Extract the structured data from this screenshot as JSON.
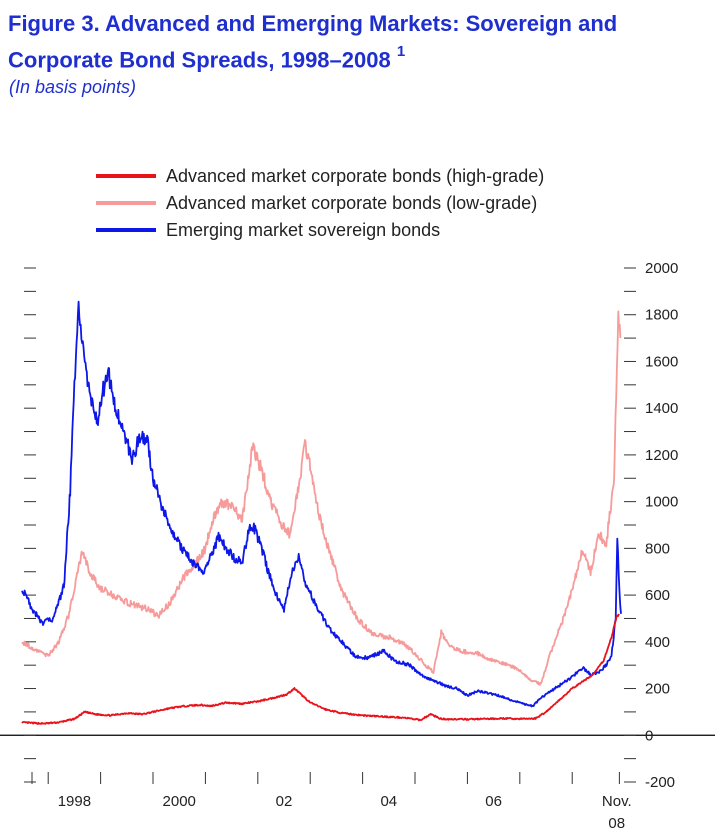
{
  "header": {
    "title": "Figure 3. Advanced and Emerging Markets: Sovereign and Corporate Bond Spreads, 1998–2008",
    "footnote_marker": "1",
    "subtitle": "(In basis points)"
  },
  "chart_data": {
    "type": "line",
    "title": "Figure 3. Advanced and Emerging Markets: Sovereign and Corporate Bond Spreads, 1998–2008",
    "subtitle": "(In basis points)",
    "xlabel": "",
    "ylabel": "",
    "xlim": [
      1997.5,
      2008.95
    ],
    "ylim": [
      -200,
      2000
    ],
    "yticks": [
      -200,
      0,
      200,
      400,
      600,
      800,
      1000,
      1200,
      1400,
      1600,
      1800,
      2000
    ],
    "xtick_labels": [
      {
        "x": 1998.5,
        "label": "1998"
      },
      {
        "x": 2000.5,
        "label": "2000"
      },
      {
        "x": 2002.5,
        "label": "02"
      },
      {
        "x": 2004.5,
        "label": "04"
      },
      {
        "x": 2006.5,
        "label": "06"
      },
      {
        "x": 2008.85,
        "label": "Nov.",
        "label2": "08"
      }
    ],
    "grid": false,
    "legend": "top",
    "series": [
      {
        "name": "Advanced market corporate bonds (high-grade)",
        "color": "#e8121b",
        "points": [
          [
            1997.5,
            55
          ],
          [
            1997.9,
            50
          ],
          [
            1998.2,
            55
          ],
          [
            1998.5,
            70
          ],
          [
            1998.7,
            100
          ],
          [
            1998.9,
            90
          ],
          [
            1999.2,
            85
          ],
          [
            1999.5,
            95
          ],
          [
            1999.8,
            90
          ],
          [
            2000.0,
            100
          ],
          [
            2000.3,
            115
          ],
          [
            2000.6,
            125
          ],
          [
            2000.9,
            130
          ],
          [
            2001.1,
            125
          ],
          [
            2001.4,
            140
          ],
          [
            2001.7,
            135
          ],
          [
            2002.0,
            145
          ],
          [
            2002.3,
            160
          ],
          [
            2002.55,
            175
          ],
          [
            2002.7,
            200
          ],
          [
            2002.85,
            170
          ],
          [
            2003.0,
            140
          ],
          [
            2003.3,
            110
          ],
          [
            2003.6,
            95
          ],
          [
            2004.0,
            85
          ],
          [
            2004.4,
            80
          ],
          [
            2004.8,
            75
          ],
          [
            2005.1,
            65
          ],
          [
            2005.3,
            90
          ],
          [
            2005.5,
            70
          ],
          [
            2005.9,
            68
          ],
          [
            2006.3,
            70
          ],
          [
            2006.7,
            72
          ],
          [
            2007.0,
            70
          ],
          [
            2007.3,
            72
          ],
          [
            2007.5,
            100
          ],
          [
            2007.8,
            160
          ],
          [
            2008.0,
            200
          ],
          [
            2008.2,
            230
          ],
          [
            2008.4,
            260
          ],
          [
            2008.6,
            320
          ],
          [
            2008.75,
            420
          ],
          [
            2008.85,
            510
          ],
          [
            2008.9,
            515
          ]
        ]
      },
      {
        "name": "Advanced market corporate bonds (low-grade)",
        "color": "#f79a9a",
        "points": [
          [
            1997.5,
            400
          ],
          [
            1997.8,
            360
          ],
          [
            1998.0,
            340
          ],
          [
            1998.2,
            400
          ],
          [
            1998.4,
            520
          ],
          [
            1998.55,
            680
          ],
          [
            1998.65,
            790
          ],
          [
            1998.8,
            690
          ],
          [
            1999.0,
            630
          ],
          [
            1999.3,
            590
          ],
          [
            1999.6,
            560
          ],
          [
            1999.9,
            540
          ],
          [
            2000.1,
            510
          ],
          [
            2000.3,
            560
          ],
          [
            2000.6,
            680
          ],
          [
            2000.9,
            760
          ],
          [
            2001.0,
            800
          ],
          [
            2001.1,
            900
          ],
          [
            2001.3,
            1000
          ],
          [
            2001.5,
            980
          ],
          [
            2001.7,
            920
          ],
          [
            2001.9,
            1230
          ],
          [
            2002.05,
            1150
          ],
          [
            2002.25,
            1000
          ],
          [
            2002.45,
            900
          ],
          [
            2002.6,
            860
          ],
          [
            2002.75,
            1020
          ],
          [
            2002.9,
            1240
          ],
          [
            2003.0,
            1150
          ],
          [
            2003.15,
            960
          ],
          [
            2003.35,
            800
          ],
          [
            2003.6,
            620
          ],
          [
            2003.9,
            500
          ],
          [
            2004.2,
            430
          ],
          [
            2004.5,
            420
          ],
          [
            2004.8,
            390
          ],
          [
            2005.0,
            350
          ],
          [
            2005.2,
            300
          ],
          [
            2005.35,
            270
          ],
          [
            2005.5,
            440
          ],
          [
            2005.65,
            380
          ],
          [
            2005.9,
            360
          ],
          [
            2006.2,
            350
          ],
          [
            2006.5,
            320
          ],
          [
            2006.8,
            300
          ],
          [
            2007.0,
            280
          ],
          [
            2007.25,
            230
          ],
          [
            2007.4,
            220
          ],
          [
            2007.6,
            360
          ],
          [
            2007.8,
            480
          ],
          [
            2008.0,
            620
          ],
          [
            2008.2,
            800
          ],
          [
            2008.35,
            700
          ],
          [
            2008.5,
            860
          ],
          [
            2008.65,
            820
          ],
          [
            2008.8,
            1100
          ],
          [
            2008.88,
            1830
          ],
          [
            2008.92,
            1700
          ]
        ]
      },
      {
        "name": "Emerging market sovereign bonds",
        "color": "#0d18e8",
        "points": [
          [
            1997.5,
            630
          ],
          [
            1997.7,
            540
          ],
          [
            1997.9,
            480
          ],
          [
            1998.1,
            500
          ],
          [
            1998.3,
            640
          ],
          [
            1998.42,
            1050
          ],
          [
            1998.5,
            1500
          ],
          [
            1998.58,
            1820
          ],
          [
            1998.66,
            1650
          ],
          [
            1998.75,
            1500
          ],
          [
            1998.85,
            1400
          ],
          [
            1998.95,
            1350
          ],
          [
            1999.05,
            1480
          ],
          [
            1999.15,
            1550
          ],
          [
            1999.3,
            1380
          ],
          [
            1999.45,
            1300
          ],
          [
            1999.6,
            1180
          ],
          [
            1999.75,
            1280
          ],
          [
            1999.9,
            1250
          ],
          [
            2000.0,
            1100
          ],
          [
            2000.2,
            960
          ],
          [
            2000.4,
            860
          ],
          [
            2000.6,
            780
          ],
          [
            2000.8,
            730
          ],
          [
            2000.95,
            700
          ],
          [
            2001.1,
            760
          ],
          [
            2001.25,
            850
          ],
          [
            2001.4,
            800
          ],
          [
            2001.55,
            760
          ],
          [
            2001.7,
            740
          ],
          [
            2001.85,
            900
          ],
          [
            2001.95,
            880
          ],
          [
            2002.1,
            780
          ],
          [
            2002.2,
            700
          ],
          [
            2002.35,
            600
          ],
          [
            2002.5,
            540
          ],
          [
            2002.65,
            700
          ],
          [
            2002.78,
            770
          ],
          [
            2002.9,
            660
          ],
          [
            2003.1,
            560
          ],
          [
            2003.35,
            460
          ],
          [
            2003.6,
            400
          ],
          [
            2003.85,
            340
          ],
          [
            2004.1,
            330
          ],
          [
            2004.4,
            360
          ],
          [
            2004.6,
            320
          ],
          [
            2004.9,
            300
          ],
          [
            2005.1,
            260
          ],
          [
            2005.4,
            230
          ],
          [
            2005.6,
            210
          ],
          [
            2005.8,
            200
          ],
          [
            2006.0,
            170
          ],
          [
            2006.2,
            190
          ],
          [
            2006.4,
            180
          ],
          [
            2006.6,
            170
          ],
          [
            2006.85,
            150
          ],
          [
            2007.05,
            135
          ],
          [
            2007.25,
            125
          ],
          [
            2007.4,
            160
          ],
          [
            2007.6,
            190
          ],
          [
            2007.8,
            220
          ],
          [
            2008.0,
            250
          ],
          [
            2008.2,
            290
          ],
          [
            2008.35,
            260
          ],
          [
            2008.5,
            270
          ],
          [
            2008.65,
            300
          ],
          [
            2008.75,
            340
          ],
          [
            2008.83,
            500
          ],
          [
            2008.86,
            850
          ],
          [
            2008.9,
            620
          ],
          [
            2008.93,
            520
          ]
        ]
      }
    ]
  }
}
